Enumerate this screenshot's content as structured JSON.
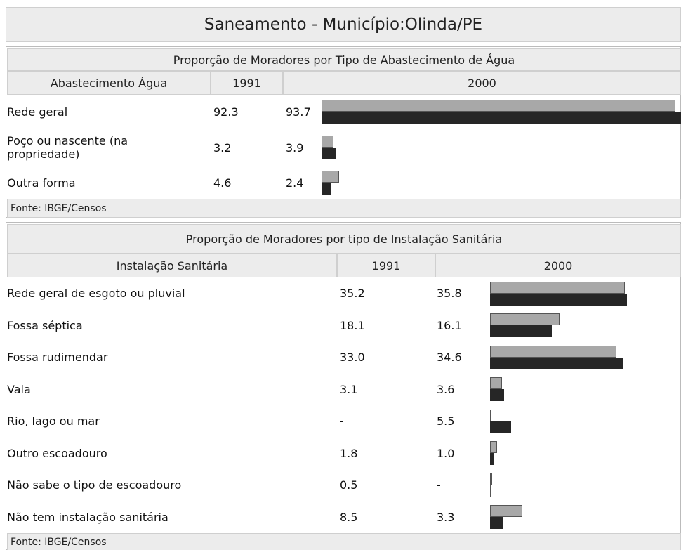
{
  "header": {
    "title": "Saneamento - Município:Olinda/PE"
  },
  "tables": [
    {
      "title": "Proporção de Moradores por Tipo de Abastecimento de Água",
      "columns": [
        "Abastecimento Água",
        "1991",
        "2000"
      ],
      "rows": [
        {
          "label": "Rede geral",
          "values": [
            92.3,
            93.7
          ],
          "value_labels": [
            "92.3",
            "93.7"
          ]
        },
        {
          "label": "Poço ou nascente (na propriedade)",
          "values": [
            3.2,
            3.9
          ],
          "value_labels": [
            "3.2",
            "3.9"
          ]
        },
        {
          "label": "Outra forma",
          "values": [
            4.6,
            2.4
          ],
          "value_labels": [
            "4.6",
            "2.4"
          ]
        }
      ],
      "source": "Fonte: IBGE/Censos"
    },
    {
      "title": "Proporção de Moradores por tipo de Instalação Sanitária",
      "columns": [
        "Instalação Sanitária",
        "1991",
        "2000"
      ],
      "rows": [
        {
          "label": "Rede geral de esgoto ou pluvial",
          "values": [
            35.2,
            35.8
          ],
          "value_labels": [
            "35.2",
            "35.8"
          ]
        },
        {
          "label": "Fossa séptica",
          "values": [
            18.1,
            16.1
          ],
          "value_labels": [
            "18.1",
            "16.1"
          ]
        },
        {
          "label": "Fossa rudimendar",
          "values": [
            33.0,
            34.6
          ],
          "value_labels": [
            "33.0",
            "34.6"
          ]
        },
        {
          "label": "Vala",
          "values": [
            3.1,
            3.6
          ],
          "value_labels": [
            "3.1",
            "3.6"
          ]
        },
        {
          "label": "Rio, lago ou mar",
          "values": [
            null,
            5.5
          ],
          "value_labels": [
            "-",
            "5.5"
          ]
        },
        {
          "label": "Outro escoadouro",
          "values": [
            1.8,
            1.0
          ],
          "value_labels": [
            "1.8",
            "1.0"
          ]
        },
        {
          "label": "Não sabe o tipo de escoadouro",
          "values": [
            0.5,
            null
          ],
          "value_labels": [
            "0.5",
            "-"
          ]
        },
        {
          "label": "Não tem instalação sanitária",
          "values": [
            8.5,
            3.3
          ],
          "value_labels": [
            "8.5",
            "3.3"
          ]
        }
      ],
      "source": "Fonte: IBGE/Censos"
    }
  ]
}
